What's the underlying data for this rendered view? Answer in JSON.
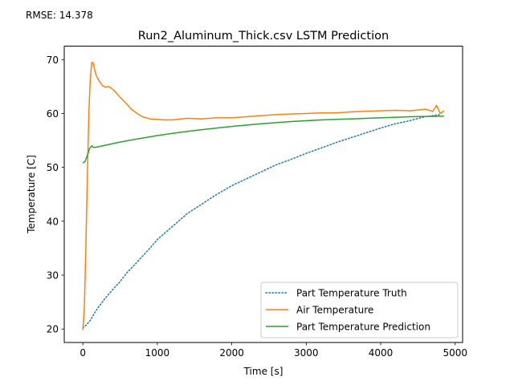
{
  "annotation": "RMSE: 14.378",
  "chart_data": {
    "type": "line",
    "title": "Run2_Aluminum_Thick.csv LSTM Prediction",
    "xlabel": "Time [s]",
    "ylabel": "Temperature [C]",
    "xlim": [
      -250,
      5100
    ],
    "ylim": [
      17.5,
      72.5
    ],
    "xticks": [
      0,
      1000,
      2000,
      3000,
      4000,
      5000
    ],
    "yticks": [
      20,
      30,
      40,
      50,
      60,
      70
    ],
    "grid": false,
    "legend_position": "lower right",
    "series": [
      {
        "name": "Part Temperature Truth",
        "style": "dotted",
        "color": "#1f77b4",
        "x": [
          0,
          50,
          100,
          150,
          200,
          300,
          400,
          500,
          600,
          700,
          800,
          900,
          1000,
          1200,
          1400,
          1600,
          1800,
          2000,
          2200,
          2400,
          2600,
          2800,
          3000,
          3200,
          3400,
          3600,
          3800,
          4000,
          4200,
          4400,
          4600,
          4800
        ],
        "y": [
          20.2,
          20.8,
          21.6,
          22.8,
          23.9,
          25.7,
          27.3,
          28.8,
          30.6,
          32.0,
          33.5,
          35.0,
          36.6,
          39.0,
          41.4,
          43.2,
          45.0,
          46.6,
          47.9,
          49.2,
          50.5,
          51.5,
          52.6,
          53.6,
          54.6,
          55.5,
          56.4,
          57.3,
          58.1,
          58.7,
          59.4,
          59.8
        ]
      },
      {
        "name": "Air Temperature",
        "style": "solid",
        "color": "#ff7f0e",
        "x": [
          0,
          20,
          40,
          60,
          80,
          100,
          120,
          140,
          160,
          180,
          200,
          230,
          260,
          300,
          350,
          400,
          450,
          500,
          550,
          600,
          650,
          700,
          750,
          800,
          900,
          1000,
          1100,
          1200,
          1400,
          1600,
          1800,
          2000,
          2200,
          2400,
          2600,
          2800,
          3000,
          3200,
          3400,
          3600,
          3800,
          4000,
          4200,
          4400,
          4600,
          4700,
          4750,
          4800,
          4850
        ],
        "y": [
          19.8,
          24.0,
          35.0,
          48.0,
          60.0,
          66.5,
          69.5,
          69.3,
          68.0,
          67.0,
          66.5,
          65.8,
          65.2,
          64.9,
          65.0,
          64.5,
          63.8,
          63.0,
          62.3,
          61.6,
          60.8,
          60.3,
          59.8,
          59.4,
          59.0,
          58.9,
          58.8,
          58.8,
          59.1,
          59.0,
          59.2,
          59.2,
          59.4,
          59.6,
          59.8,
          59.9,
          60.0,
          60.1,
          60.1,
          60.3,
          60.4,
          60.5,
          60.6,
          60.5,
          60.8,
          60.4,
          61.5,
          60.0,
          60.5
        ]
      },
      {
        "name": "Part Temperature Prediction",
        "style": "solid",
        "color": "#2ca02c",
        "x": [
          0,
          30,
          60,
          90,
          120,
          140,
          160,
          200,
          300,
          400,
          500,
          700,
          1000,
          1300,
          1600,
          2000,
          2400,
          2800,
          3200,
          3600,
          4000,
          4400,
          4850
        ],
        "y": [
          50.8,
          51.1,
          52.2,
          53.5,
          54.0,
          53.7,
          53.7,
          53.8,
          54.1,
          54.4,
          54.7,
          55.2,
          55.9,
          56.5,
          57.0,
          57.6,
          58.1,
          58.5,
          58.8,
          59.0,
          59.2,
          59.4,
          59.5
        ]
      }
    ]
  }
}
